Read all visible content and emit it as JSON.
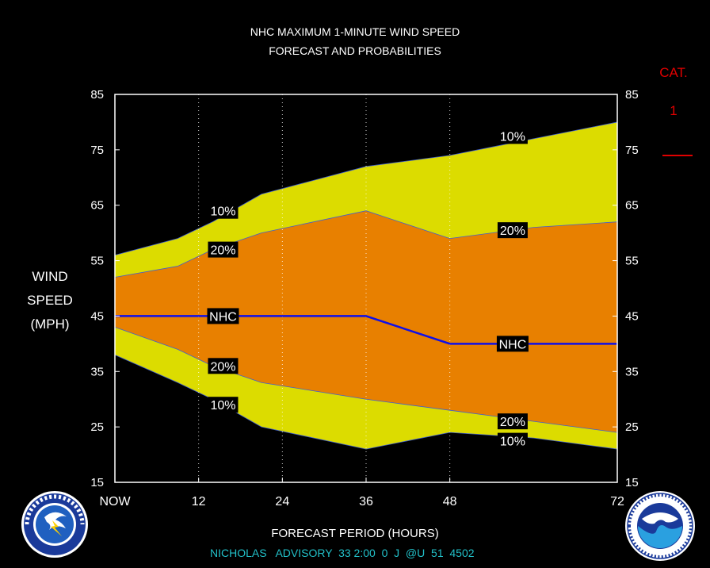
{
  "title_line1": "NHC MAXIMUM 1-MINUTE WIND SPEED",
  "title_line2": "FORECAST AND PROBABILITIES",
  "ylabel_lines": [
    "WIND",
    "SPEED",
    "(MPH)"
  ],
  "xlabel": "FORECAST PERIOD (HOURS)",
  "advisory_text": "NICHOLAS   ADVISORY  33 2:00  0  J  @U  51  4502",
  "category": {
    "label": "CAT.",
    "value": "1",
    "color": "#e00000"
  },
  "colors": {
    "band_10": "#dcdc00",
    "band_20": "#e88000",
    "nhc_line": "#1010e8",
    "plot_border": "#ffffff",
    "advisory": "#22c0c8"
  },
  "logos": {
    "left": "nws-logo",
    "right": "noaa-logo"
  },
  "chart_data": {
    "type": "area",
    "x_ticks": [
      0,
      12,
      24,
      36,
      48,
      72
    ],
    "x_tick_labels": [
      "NOW",
      "12",
      "24",
      "36",
      "48",
      "72"
    ],
    "xlim": [
      0,
      72
    ],
    "y_ticks": [
      15,
      25,
      35,
      45,
      55,
      65,
      75,
      85
    ],
    "ylim": [
      15,
      85
    ],
    "grid": "vertical dotted at 12, 24, 36, 48",
    "x": [
      0,
      9,
      14,
      21,
      36,
      48,
      60,
      72
    ],
    "series": [
      {
        "name": "10%",
        "upper": [
          56,
          59,
          62,
          67,
          72,
          74,
          77,
          80
        ],
        "lower": [
          38,
          33,
          30,
          25,
          21,
          24,
          23,
          21
        ]
      },
      {
        "name": "20%",
        "upper": [
          52,
          54,
          57,
          60,
          64,
          59,
          61,
          62
        ],
        "lower": [
          43,
          39,
          36,
          33,
          30,
          28,
          26,
          24
        ]
      },
      {
        "name": "NHC",
        "values": [
          45,
          45,
          45,
          45,
          45,
          40,
          40,
          40
        ]
      }
    ],
    "labels": [
      {
        "text": "10%",
        "x": 15.5,
        "y": 64
      },
      {
        "text": "20%",
        "x": 15.5,
        "y": 57
      },
      {
        "text": "NHC",
        "x": 15.5,
        "y": 45
      },
      {
        "text": "20%",
        "x": 15.5,
        "y": 36
      },
      {
        "text": "10%",
        "x": 15.5,
        "y": 29
      },
      {
        "text": "10%",
        "x": 57,
        "y": 77.5
      },
      {
        "text": "20%",
        "x": 57,
        "y": 60.5
      },
      {
        "text": "NHC",
        "x": 57,
        "y": 40
      },
      {
        "text": "20%",
        "x": 57,
        "y": 26
      },
      {
        "text": "10%",
        "x": 57,
        "y": 22.5
      }
    ]
  }
}
